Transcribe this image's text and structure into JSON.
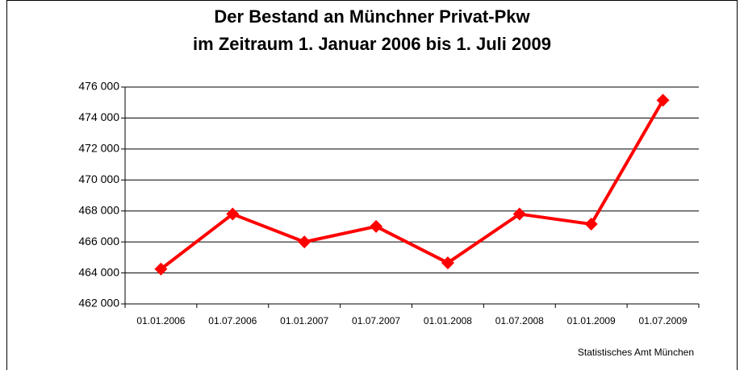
{
  "chart_data": {
    "type": "line",
    "title": [
      "Der Bestand an Münchner Privat-Pkw",
      "im Zeitraum 1. Januar 2006 bis 1. Juli 2009"
    ],
    "categories": [
      "01.01.2006",
      "01.07.2006",
      "01.01.2007",
      "01.07.2007",
      "01.01.2008",
      "01.07.2008",
      "01.01.2009",
      "01.07.2009"
    ],
    "series": [
      {
        "color": "#ff0000",
        "values": [
          464250,
          467800,
          466000,
          467000,
          464650,
          467800,
          467150,
          475150
        ]
      }
    ],
    "ylim": [
      462000,
      476000
    ],
    "yticks": [
      {
        "value": 462000,
        "label": "462 000"
      },
      {
        "value": 464000,
        "label": "464 000"
      },
      {
        "value": 466000,
        "label": "466 000"
      },
      {
        "value": 468000,
        "label": "468 000"
      },
      {
        "value": 470000,
        "label": "470 000"
      },
      {
        "value": 472000,
        "label": "472 000"
      },
      {
        "value": 474000,
        "label": "474 000"
      },
      {
        "value": 476000,
        "label": "476 000"
      }
    ],
    "grid": true,
    "source": "Statistisches Amt München"
  }
}
